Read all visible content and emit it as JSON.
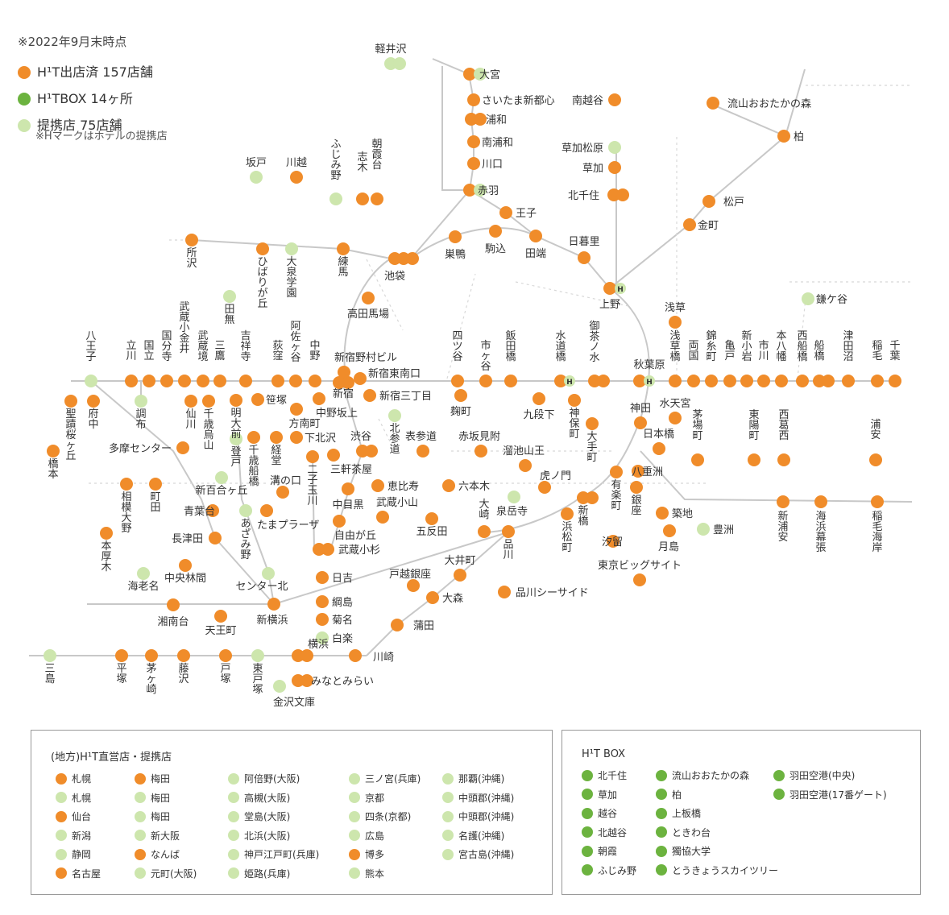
{
  "legend": {
    "note": "※2022年9月末時点",
    "items": [
      {
        "type": "opened",
        "label": "H¹T出店済 157店舗",
        "color": "#f08c2a"
      },
      {
        "type": "box",
        "label": "H¹TBOX 14ヶ所",
        "color": "#6cb33f"
      },
      {
        "type": "partner",
        "label": "提携店 75店舗",
        "color": "#cde6ad"
      }
    ],
    "hotel_note": "※Hマークはホテルの提携店"
  },
  "colors": {
    "opened": "#f08c2a",
    "box": "#6cb33f",
    "partner": "#cde6ad",
    "line": "#c8c8c8"
  },
  "stations": [
    {
      "name": "軽井沢",
      "kind": "partner",
      "count": 2
    },
    {
      "name": "大宮",
      "kind": "opened",
      "count": 1
    },
    {
      "name": "大宮",
      "kind": "partner",
      "count": 1
    },
    {
      "name": "さいたま新都心",
      "kind": "opened",
      "count": 1
    },
    {
      "name": "浦和",
      "kind": "opened",
      "count": 2
    },
    {
      "name": "南浦和",
      "kind": "opened",
      "count": 1
    },
    {
      "name": "川口",
      "kind": "opened",
      "count": 1
    },
    {
      "name": "赤羽",
      "kind": "opened",
      "count": 1
    },
    {
      "name": "赤羽",
      "kind": "partner",
      "count": 1
    },
    {
      "name": "南越谷",
      "kind": "opened",
      "count": 1
    },
    {
      "name": "流山おおたかの森",
      "kind": "opened",
      "count": 1
    },
    {
      "name": "柏",
      "kind": "opened",
      "count": 1
    },
    {
      "name": "草加松原",
      "kind": "partner",
      "count": 1
    },
    {
      "name": "草加",
      "kind": "opened",
      "count": 1
    },
    {
      "name": "北千住",
      "kind": "opened",
      "count": 2
    },
    {
      "name": "松戸",
      "kind": "opened",
      "count": 1
    },
    {
      "name": "金町",
      "kind": "opened",
      "count": 1
    },
    {
      "name": "鎌ケ谷",
      "kind": "partner",
      "count": 1
    },
    {
      "name": "王子",
      "kind": "opened",
      "count": 1
    },
    {
      "name": "駒込",
      "kind": "opened",
      "count": 1
    },
    {
      "name": "田端",
      "kind": "opened",
      "count": 1
    },
    {
      "name": "日暮里",
      "kind": "opened",
      "count": 1
    },
    {
      "name": "巣鴨",
      "kind": "opened",
      "count": 1
    },
    {
      "name": "上野",
      "kind": "opened",
      "count": 1
    },
    {
      "name": "浅草",
      "kind": "opened",
      "count": 1
    },
    {
      "name": "坂戸",
      "kind": "partner",
      "count": 1
    },
    {
      "name": "川越",
      "kind": "opened",
      "count": 1
    },
    {
      "name": "ふじみ野",
      "kind": "partner",
      "count": 1
    },
    {
      "name": "志木",
      "kind": "opened",
      "count": 1
    },
    {
      "name": "朝霞台",
      "kind": "opened",
      "count": 1
    },
    {
      "name": "所沢",
      "kind": "opened",
      "count": 1
    },
    {
      "name": "ひばりが丘",
      "kind": "opened",
      "count": 1
    },
    {
      "name": "大泉学園",
      "kind": "partner",
      "count": 1
    },
    {
      "name": "練馬",
      "kind": "opened",
      "count": 1
    },
    {
      "name": "池袋",
      "kind": "opened",
      "count": 3
    },
    {
      "name": "田無",
      "kind": "partner",
      "count": 1
    },
    {
      "name": "高田馬場",
      "kind": "opened",
      "count": 1
    },
    {
      "name": "八王子",
      "kind": "partner",
      "count": 1
    },
    {
      "name": "立川",
      "kind": "opened",
      "count": 1
    },
    {
      "name": "国立",
      "kind": "opened",
      "count": 1
    },
    {
      "name": "国分寺",
      "kind": "opened",
      "count": 1
    },
    {
      "name": "武蔵小金井",
      "kind": "opened",
      "count": 1
    },
    {
      "name": "武蔵境",
      "kind": "opened",
      "count": 1
    },
    {
      "name": "三鷹",
      "kind": "opened",
      "count": 1
    },
    {
      "name": "吉祥寺",
      "kind": "opened",
      "count": 1
    },
    {
      "name": "荻窪",
      "kind": "opened",
      "count": 1
    },
    {
      "name": "阿佐ヶ谷",
      "kind": "opened",
      "count": 1
    },
    {
      "name": "中野",
      "kind": "opened",
      "count": 1
    },
    {
      "name": "新宿野村ビル",
      "kind": "opened",
      "count": 1
    },
    {
      "name": "新宿東南口",
      "kind": "opened",
      "count": 1
    },
    {
      "name": "新宿",
      "kind": "opened",
      "count": 2
    },
    {
      "name": "新宿三丁目",
      "kind": "opened",
      "count": 1
    },
    {
      "name": "四ツ谷",
      "kind": "opened",
      "count": 1
    },
    {
      "name": "市ヶ谷",
      "kind": "opened",
      "count": 1
    },
    {
      "name": "飯田橋",
      "kind": "opened",
      "count": 1
    },
    {
      "name": "水道橋",
      "kind": "opened",
      "count": 1
    },
    {
      "name": "御茶ノ水",
      "kind": "opened",
      "count": 2
    },
    {
      "name": "秋葉原",
      "kind": "opened",
      "count": 1
    },
    {
      "name": "浅草橋",
      "kind": "opened",
      "count": 1
    },
    {
      "name": "両国",
      "kind": "opened",
      "count": 1
    },
    {
      "name": "錦糸町",
      "kind": "opened",
      "count": 1
    },
    {
      "name": "亀戸",
      "kind": "opened",
      "count": 1
    },
    {
      "name": "新小岩",
      "kind": "opened",
      "count": 1
    },
    {
      "name": "市川",
      "kind": "opened",
      "count": 1
    },
    {
      "name": "本八幡",
      "kind": "opened",
      "count": 1
    },
    {
      "name": "西船橋",
      "kind": "opened",
      "count": 1
    },
    {
      "name": "船橋",
      "kind": "opened",
      "count": 2
    },
    {
      "name": "津田沼",
      "kind": "opened",
      "count": 1
    },
    {
      "name": "稲毛",
      "kind": "opened",
      "count": 1
    },
    {
      "name": "千葉",
      "kind": "opened",
      "count": 1
    },
    {
      "name": "聖蹟桜ヶ丘",
      "kind": "opened",
      "count": 1
    },
    {
      "name": "府中",
      "kind": "opened",
      "count": 1
    },
    {
      "name": "調布",
      "kind": "partner",
      "count": 1
    },
    {
      "name": "橋本",
      "kind": "opened",
      "count": 1
    },
    {
      "name": "仙川",
      "kind": "opened",
      "count": 1
    },
    {
      "name": "千歳烏山",
      "kind": "opened",
      "count": 1
    },
    {
      "name": "明大前",
      "kind": "opened",
      "count": 1
    },
    {
      "name": "笹塚",
      "kind": "opened",
      "count": 1
    },
    {
      "name": "方南町",
      "kind": "opened",
      "count": 1
    },
    {
      "name": "中野坂上",
      "kind": "opened",
      "count": 1
    },
    {
      "name": "麹町",
      "kind": "opened",
      "count": 1
    },
    {
      "name": "九段下",
      "kind": "opened",
      "count": 1
    },
    {
      "name": "神保町",
      "kind": "opened",
      "count": 1
    },
    {
      "name": "神田",
      "kind": "opened",
      "count": 1
    },
    {
      "name": "水天宮",
      "kind": "opened",
      "count": 1
    },
    {
      "name": "茅場町",
      "kind": "opened",
      "count": 1
    },
    {
      "name": "東陽町",
      "kind": "opened",
      "count": 1
    },
    {
      "name": "西葛西",
      "kind": "opened",
      "count": 1
    },
    {
      "name": "浦安",
      "kind": "opened",
      "count": 1
    },
    {
      "name": "多摩センター",
      "kind": "opened",
      "count": 1
    },
    {
      "name": "登戸",
      "kind": "partner",
      "count": 1
    },
    {
      "name": "千歳船橋",
      "kind": "opened",
      "count": 1
    },
    {
      "name": "経堂",
      "kind": "opened",
      "count": 1
    },
    {
      "name": "下北沢",
      "kind": "opened",
      "count": 1
    },
    {
      "name": "二子玉川",
      "kind": "opened",
      "count": 1
    },
    {
      "name": "三軒茶屋",
      "kind": "opened",
      "count": 1
    },
    {
      "name": "渋谷",
      "kind": "opened",
      "count": 2
    },
    {
      "name": "北参道",
      "kind": "partner",
      "count": 1
    },
    {
      "name": "表参道",
      "kind": "opened",
      "count": 1
    },
    {
      "name": "赤坂見附",
      "kind": "opened",
      "count": 1
    },
    {
      "name": "溜池山王",
      "kind": "opened",
      "count": 1
    },
    {
      "name": "大手町",
      "kind": "opened",
      "count": 1
    },
    {
      "name": "日本橋",
      "kind": "opened",
      "count": 1
    },
    {
      "name": "八重洲",
      "kind": "opened",
      "count": 1
    },
    {
      "name": "有楽町",
      "kind": "opened",
      "count": 1
    },
    {
      "name": "虎ノ門",
      "kind": "opened",
      "count": 1
    },
    {
      "name": "銀座",
      "kind": "opened",
      "count": 1
    },
    {
      "name": "築地",
      "kind": "opened",
      "count": 1
    },
    {
      "name": "新橋",
      "kind": "opened",
      "count": 2
    },
    {
      "name": "恵比寿",
      "kind": "opened",
      "count": 1
    },
    {
      "name": "六本木",
      "kind": "opened",
      "count": 1
    },
    {
      "name": "泉岳寺",
      "kind": "partner",
      "count": 1
    },
    {
      "name": "中目黒",
      "kind": "opened",
      "count": 1
    },
    {
      "name": "武蔵小山",
      "kind": "opened",
      "count": 1
    },
    {
      "name": "五反田",
      "kind": "opened",
      "count": 1
    },
    {
      "name": "大崎",
      "kind": "opened",
      "count": 1
    },
    {
      "name": "品川",
      "kind": "opened",
      "count": 1
    },
    {
      "name": "浜松町",
      "kind": "opened",
      "count": 1
    },
    {
      "name": "汐留",
      "kind": "opened",
      "count": 1
    },
    {
      "name": "月島",
      "kind": "opened",
      "count": 1
    },
    {
      "name": "豊洲",
      "kind": "partner",
      "count": 1
    },
    {
      "name": "新浦安",
      "kind": "opened",
      "count": 1
    },
    {
      "name": "海浜幕張",
      "kind": "opened",
      "count": 1
    },
    {
      "name": "稲毛海岸",
      "kind": "opened",
      "count": 1
    },
    {
      "name": "相模大野",
      "kind": "opened",
      "count": 1
    },
    {
      "name": "町田",
      "kind": "opened",
      "count": 1
    },
    {
      "name": "新百合ヶ丘",
      "kind": "partner",
      "count": 1
    },
    {
      "name": "青葉台",
      "kind": "opened",
      "count": 1
    },
    {
      "name": "あざみ野",
      "kind": "partner",
      "count": 1
    },
    {
      "name": "たまプラーザ",
      "kind": "opened",
      "count": 1
    },
    {
      "name": "溝の口",
      "kind": "opened",
      "count": 1
    },
    {
      "name": "自由が丘",
      "kind": "opened",
      "count": 1
    },
    {
      "name": "武蔵小杉",
      "kind": "opened",
      "count": 2
    },
    {
      "name": "本厚木",
      "kind": "opened",
      "count": 1
    },
    {
      "name": "長津田",
      "kind": "opened",
      "count": 1
    },
    {
      "name": "海老名",
      "kind": "partner",
      "count": 1
    },
    {
      "name": "中央林間",
      "kind": "opened",
      "count": 1
    },
    {
      "name": "センター北",
      "kind": "partner",
      "count": 1
    },
    {
      "name": "日吉",
      "kind": "opened",
      "count": 1
    },
    {
      "name": "戸越銀座",
      "kind": "opened",
      "count": 1
    },
    {
      "name": "大井町",
      "kind": "opened",
      "count": 1
    },
    {
      "name": "大森",
      "kind": "opened",
      "count": 1
    },
    {
      "name": "品川シーサイド",
      "kind": "opened",
      "count": 1
    },
    {
      "name": "東京ビッグサイト",
      "kind": "opened",
      "count": 1
    },
    {
      "name": "湘南台",
      "kind": "opened",
      "count": 1
    },
    {
      "name": "天王町",
      "kind": "opened",
      "count": 1
    },
    {
      "name": "新横浜",
      "kind": "opened",
      "count": 1
    },
    {
      "name": "綱島",
      "kind": "opened",
      "count": 1
    },
    {
      "name": "菊名",
      "kind": "opened",
      "count": 1
    },
    {
      "name": "白楽",
      "kind": "partner",
      "count": 1
    },
    {
      "name": "蒲田",
      "kind": "opened",
      "count": 1
    },
    {
      "name": "横浜",
      "kind": "opened",
      "count": 2
    },
    {
      "name": "川崎",
      "kind": "opened",
      "count": 1
    },
    {
      "name": "みなとみらい",
      "kind": "opened",
      "count": 2
    },
    {
      "name": "金沢文庫",
      "kind": "partner",
      "count": 1
    },
    {
      "name": "三島",
      "kind": "partner",
      "count": 1
    },
    {
      "name": "平塚",
      "kind": "opened",
      "count": 1
    },
    {
      "name": "茅ヶ崎",
      "kind": "opened",
      "count": 1
    },
    {
      "name": "藤沢",
      "kind": "opened",
      "count": 1
    },
    {
      "name": "戸塚",
      "kind": "opened",
      "count": 1
    },
    {
      "name": "東戸塚",
      "kind": "partner",
      "count": 1
    }
  ],
  "regional": {
    "title": "(地方)H¹T直営店・提携店",
    "columns": [
      [
        {
          "name": "札幌",
          "kind": "opened"
        },
        {
          "name": "札幌",
          "kind": "partner"
        },
        {
          "name": "仙台",
          "kind": "opened"
        },
        {
          "name": "新潟",
          "kind": "partner"
        },
        {
          "name": "静岡",
          "kind": "partner"
        },
        {
          "name": "名古屋",
          "kind": "opened"
        }
      ],
      [
        {
          "name": "梅田",
          "kind": "opened"
        },
        {
          "name": "梅田",
          "kind": "partner"
        },
        {
          "name": "梅田",
          "kind": "partner"
        },
        {
          "name": "新大阪",
          "kind": "partner"
        },
        {
          "name": "なんば",
          "kind": "opened"
        },
        {
          "name": "元町(大阪)",
          "kind": "partner"
        }
      ],
      [
        {
          "name": "阿倍野(大阪)",
          "kind": "partner"
        },
        {
          "name": "高槻(大阪)",
          "kind": "partner"
        },
        {
          "name": "堂島(大阪)",
          "kind": "partner"
        },
        {
          "name": "北浜(大阪)",
          "kind": "partner"
        },
        {
          "name": "神戸江戸町(兵庫)",
          "kind": "partner"
        },
        {
          "name": "姫路(兵庫)",
          "kind": "partner"
        }
      ],
      [
        {
          "name": "三ノ宮(兵庫)",
          "kind": "partner"
        },
        {
          "name": "京都",
          "kind": "partner"
        },
        {
          "name": "四条(京都)",
          "kind": "partner"
        },
        {
          "name": "広島",
          "kind": "partner"
        },
        {
          "name": "博多",
          "kind": "opened"
        },
        {
          "name": "熊本",
          "kind": "partner"
        }
      ],
      [
        {
          "name": "那覇(沖縄)",
          "kind": "partner"
        },
        {
          "name": "中頭郡(沖縄)",
          "kind": "partner"
        },
        {
          "name": "中頭郡(沖縄)",
          "kind": "partner"
        },
        {
          "name": "名護(沖縄)",
          "kind": "partner"
        },
        {
          "name": "宮古島(沖縄)",
          "kind": "partner"
        }
      ]
    ]
  },
  "htbox": {
    "title": "H¹T BOX",
    "columns": [
      [
        "北千住",
        "草加",
        "越谷",
        "北越谷",
        "朝霞",
        "ふじみ野"
      ],
      [
        "流山おおたかの森",
        "柏",
        "上板橋",
        "ときわ台",
        "獨協大学",
        "とうきょうスカイツリー"
      ],
      [
        "羽田空港(中央)",
        "羽田空港(17番ゲート)"
      ]
    ]
  }
}
